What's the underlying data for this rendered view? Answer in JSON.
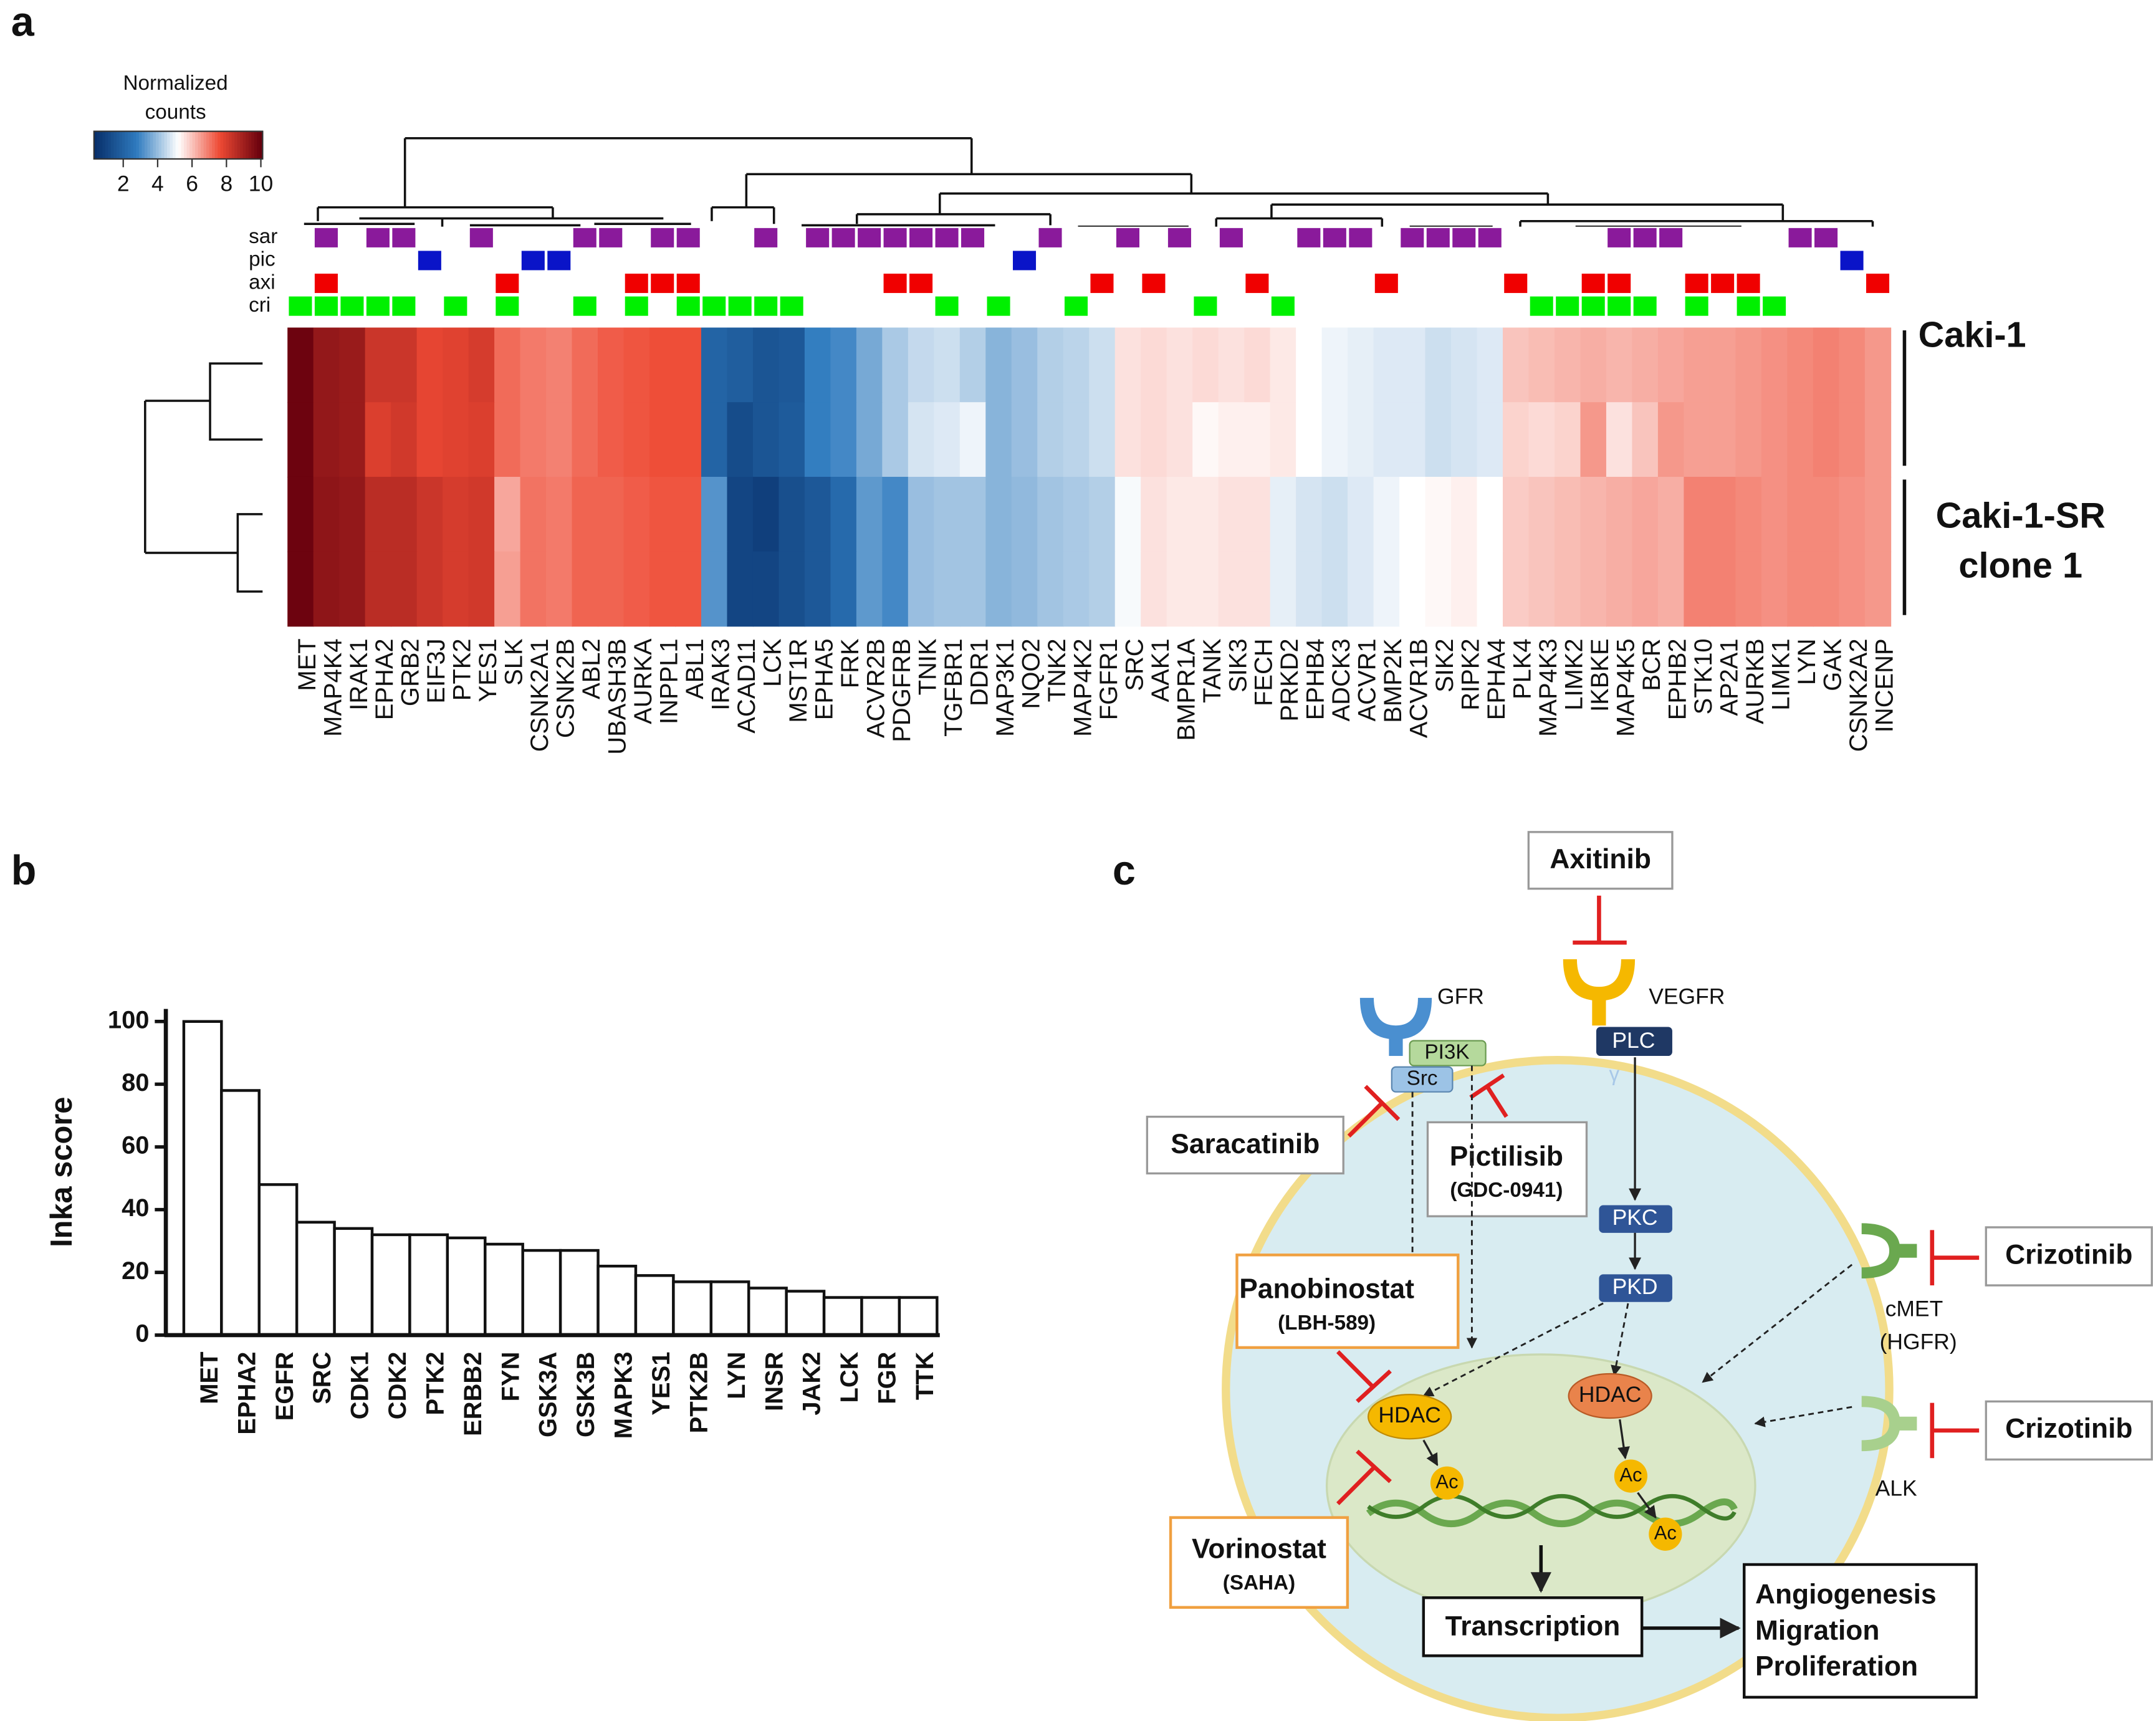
{
  "panel_labels": [
    "a",
    "b",
    "c"
  ],
  "chart_data": [
    {
      "type": "heatmap",
      "categories": [
        "MET",
        "MAP4K4",
        "IRAK1",
        "EPHA2",
        "GRB2",
        "EIF3J",
        "PTK2",
        "YES1",
        "SLK",
        "CSNK2A1",
        "CSNK2B",
        "ABL2",
        "UBASH3B",
        "AURKA",
        "INPPL1",
        "ABL1",
        "IRAK3",
        "ACAD11",
        "LCK",
        "MST1R",
        "EPHA5",
        "FRK",
        "ACVR2B",
        "PDGFRB",
        "TNIK",
        "TGFBR1",
        "DDR1",
        "MAP3K1",
        "NQO2",
        "TNK2",
        "MAP4K2",
        "FGFR1",
        "SRC",
        "AAK1",
        "BMPR1A",
        "TANK",
        "SIK3",
        "FECH",
        "PRKD2",
        "EPHB4",
        "ADCK3",
        "ACVR1",
        "BMP2K",
        "ACVR1B",
        "SIK2",
        "RIPK2",
        "EPHA4",
        "PLK4",
        "MAP4K3",
        "LIMK2",
        "IKBKE",
        "MAP4K5",
        "BCR",
        "EPHB2",
        "STK10",
        "AP2A1",
        "AURKB",
        "LIMK1",
        "LYN",
        "GAK",
        "CSNK2A2",
        "INCENP"
      ],
      "groups": [
        {
          "label": [
            "Caki-1"
          ],
          "values": [
            [
              10,
              9.3,
              9.2,
              8.3,
              8.3,
              7.8,
              7.9,
              8.1,
              7.2,
              7.0,
              6.9,
              7.2,
              7.4,
              7.5,
              7.6,
              7.6,
              2.0,
              1.8,
              1.5,
              1.6,
              2.8,
              3.0,
              3.6,
              4.2,
              4.5,
              4.6,
              4.3,
              3.8,
              4.0,
              4.3,
              4.4,
              4.6,
              5.6,
              5.7,
              5.6,
              5.7,
              5.6,
              5.7,
              5.5,
              5.2,
              5.0,
              4.9,
              4.8,
              4.8,
              4.6,
              4.7,
              4.8,
              6.0,
              6.1,
              6.2,
              6.3,
              6.2,
              6.3,
              6.4,
              6.5,
              6.5,
              6.6,
              6.7,
              6.8,
              6.9,
              6.8,
              6.6
            ],
            [
              10,
              9.3,
              9.2,
              8.0,
              8.2,
              7.8,
              7.9,
              8.0,
              7.2,
              7.0,
              6.9,
              7.2,
              7.4,
              7.5,
              7.6,
              7.6,
              2.0,
              1.2,
              1.5,
              1.7,
              2.8,
              3.0,
              3.6,
              4.2,
              4.7,
              4.8,
              5.0,
              3.8,
              4.0,
              4.3,
              4.4,
              4.6,
              5.6,
              5.7,
              5.6,
              5.3,
              5.4,
              5.4,
              5.5,
              5.2,
              5.0,
              4.9,
              4.8,
              4.8,
              4.6,
              4.7,
              4.8,
              5.8,
              5.7,
              5.8,
              6.6,
              5.6,
              6.0,
              6.6,
              6.5,
              6.5,
              6.6,
              6.7,
              6.8,
              6.9,
              6.8,
              6.6
            ]
          ]
        },
        {
          "label": [
            "Caki-1-SR",
            "clone 1"
          ],
          "values": [
            [
              10,
              9.4,
              9.3,
              8.6,
              8.6,
              8.3,
              8.1,
              8.2,
              6.4,
              7.1,
              7.0,
              7.3,
              7.3,
              7.4,
              7.5,
              7.5,
              3.2,
              1.0,
              0.8,
              1.3,
              1.6,
              2.2,
              3.3,
              3.0,
              4.0,
              4.1,
              4.1,
              3.8,
              3.9,
              4.1,
              4.2,
              4.3,
              5.1,
              5.6,
              5.5,
              5.5,
              5.6,
              5.6,
              4.9,
              4.7,
              4.6,
              4.8,
              5.0,
              5.2,
              5.3,
              5.4,
              5.2,
              5.9,
              6.0,
              6.1,
              6.2,
              6.3,
              6.4,
              6.3,
              6.9,
              6.9,
              6.8,
              6.7,
              6.8,
              6.8,
              6.7,
              6.6
            ],
            [
              10,
              9.4,
              9.3,
              8.6,
              8.6,
              8.3,
              8.1,
              8.2,
              6.5,
              7.1,
              7.0,
              7.3,
              7.3,
              7.4,
              7.5,
              7.5,
              3.2,
              1.0,
              1.0,
              1.3,
              1.6,
              2.2,
              3.3,
              3.0,
              4.0,
              4.1,
              4.1,
              3.8,
              3.9,
              4.1,
              4.2,
              4.3,
              5.1,
              5.6,
              5.5,
              5.5,
              5.6,
              5.6,
              4.9,
              4.7,
              4.6,
              4.8,
              5.0,
              5.2,
              5.3,
              5.4,
              5.2,
              5.9,
              6.0,
              6.1,
              6.2,
              6.3,
              6.4,
              6.3,
              6.9,
              6.9,
              6.8,
              6.7,
              6.8,
              6.8,
              6.7,
              6.6
            ]
          ]
        }
      ],
      "annotations": [
        {
          "name": "sar",
          "color": "#8a1a9b",
          "marks": [
            0,
            1,
            0,
            1,
            1,
            0,
            0,
            1,
            0,
            0,
            0,
            1,
            1,
            0,
            1,
            1,
            0,
            0,
            1,
            0,
            1,
            1,
            1,
            1,
            1,
            1,
            1,
            0,
            0,
            1,
            0,
            0,
            1,
            0,
            1,
            0,
            1,
            0,
            0,
            1,
            1,
            1,
            0,
            1,
            1,
            1,
            1,
            0,
            0,
            0,
            0,
            1,
            1,
            1,
            0,
            0,
            0,
            0,
            1,
            1,
            0,
            0
          ]
        },
        {
          "name": "pic",
          "color": "#0a14c8",
          "marks": [
            0,
            0,
            0,
            0,
            0,
            1,
            0,
            0,
            0,
            1,
            1,
            0,
            0,
            0,
            0,
            0,
            0,
            0,
            0,
            0,
            0,
            0,
            0,
            0,
            0,
            0,
            0,
            0,
            1,
            0,
            0,
            0,
            0,
            0,
            0,
            0,
            0,
            0,
            0,
            0,
            0,
            0,
            0,
            0,
            0,
            0,
            0,
            0,
            0,
            0,
            0,
            0,
            0,
            0,
            0,
            0,
            0,
            0,
            0,
            0,
            1,
            0
          ]
        },
        {
          "name": "axi",
          "color": "#f00000",
          "marks": [
            0,
            1,
            0,
            0,
            0,
            0,
            0,
            0,
            1,
            0,
            0,
            0,
            0,
            1,
            1,
            1,
            0,
            0,
            0,
            0,
            0,
            0,
            0,
            1,
            1,
            0,
            0,
            0,
            0,
            0,
            0,
            1,
            0,
            1,
            0,
            0,
            0,
            1,
            0,
            0,
            0,
            0,
            1,
            0,
            0,
            0,
            0,
            1,
            0,
            0,
            1,
            1,
            0,
            0,
            1,
            1,
            1,
            0,
            0,
            0,
            0,
            1
          ]
        },
        {
          "name": "cri",
          "color": "#00f000",
          "marks": [
            1,
            1,
            1,
            1,
            1,
            0,
            1,
            0,
            1,
            0,
            0,
            1,
            0,
            1,
            0,
            1,
            1,
            1,
            1,
            1,
            0,
            0,
            0,
            0,
            0,
            1,
            0,
            1,
            0,
            0,
            1,
            0,
            0,
            0,
            0,
            1,
            0,
            0,
            1,
            0,
            0,
            0,
            0,
            0,
            0,
            0,
            0,
            0,
            1,
            1,
            1,
            1,
            1,
            0,
            1,
            0,
            1,
            1,
            0,
            0,
            0,
            0
          ]
        }
      ],
      "colorbar": {
        "title": [
          "Normalized",
          "counts"
        ],
        "range": [
          0.3,
          10.1
        ],
        "ticks": [
          2,
          4,
          6,
          8,
          10
        ],
        "colors": [
          "#08306b",
          "#2f7bbf",
          "#ffffff",
          "#ee4a34",
          "#67000d"
        ]
      }
    },
    {
      "type": "bar",
      "categories": [
        "MET",
        "EPHA2",
        "EGFR",
        "SRC",
        "CDK1",
        "CDK2",
        "PTK2",
        "ERBB2",
        "FYN",
        "GSK3A",
        "GSK3B",
        "MAPK3",
        "YES1",
        "PTK2B",
        "LYN",
        "INSR",
        "JAK2",
        "LCK",
        "FGR",
        "TTK"
      ],
      "values": [
        100,
        78,
        48,
        36,
        34,
        32,
        32,
        31,
        29,
        27,
        27,
        22,
        19,
        17,
        17,
        15,
        14,
        12,
        12,
        12
      ],
      "color": "#ffffff",
      "ylabel": "Inka score",
      "ylim": [
        0,
        104
      ],
      "yticks": [
        0,
        20,
        40,
        60,
        80,
        100
      ]
    }
  ],
  "pathway": {
    "axitinib": "Axitinib",
    "gfr": "GFR",
    "vegfr": "VEGFR",
    "pi3k": "PI3K",
    "src": "Src",
    "plc": "PLC",
    "gamma": "γ",
    "saracatinib": "Saracatinib",
    "pictilisib": [
      "Pictilisib",
      "(GDC-0941)"
    ],
    "pkc": "PKC",
    "pkd": "PKD",
    "panobinostat": [
      "Panobinostat",
      "(LBH-589)"
    ],
    "hdac": [
      "HDAC",
      "HDAC"
    ],
    "ac": [
      "Ac",
      "Ac",
      "Ac"
    ],
    "vorinostat": [
      "Vorinostat",
      "(SAHA)"
    ],
    "transcription": "Transcription",
    "outcomes": [
      "Angiogenesis",
      "Migration",
      "Proliferation"
    ],
    "crizotinib": [
      "Crizotinib",
      "Crizotinib"
    ],
    "cmet": [
      "cMET",
      "(HGFR)"
    ],
    "alk": "ALK"
  }
}
